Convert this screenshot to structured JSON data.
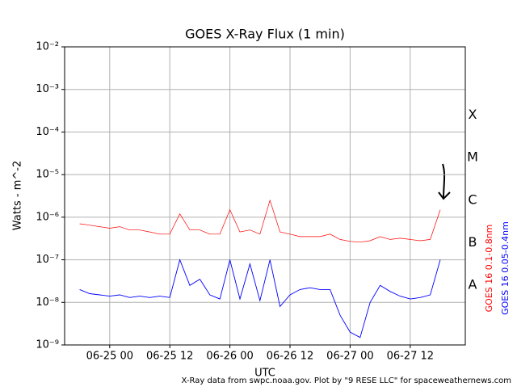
{
  "chart_data": {
    "type": "line",
    "title": "GOES X-Ray Flux (1 min)",
    "x_label": "UTC",
    "y_label": "Watts - m^-2",
    "footer": "X-Ray data from swpc.noaa.gov. Plot by \"9 RESE LLC\" for spaceweathernews.com",
    "flare_classes": [
      "A",
      "B",
      "C",
      "M",
      "X"
    ],
    "log_scale": true,
    "grid": true,
    "x": [
      "06-24 18",
      "06-24 20",
      "06-24 22",
      "06-25 00",
      "06-25 02",
      "06-25 04",
      "06-25 06",
      "06-25 08",
      "06-25 10",
      "06-25 12",
      "06-25 14",
      "06-25 16",
      "06-25 18",
      "06-25 20",
      "06-25 22",
      "06-26 00",
      "06-26 02",
      "06-26 04",
      "06-26 06",
      "06-26 08",
      "06-26 10",
      "06-26 12",
      "06-26 14",
      "06-26 16",
      "06-26 18",
      "06-26 20",
      "06-26 22",
      "06-27 00",
      "06-27 02",
      "06-27 04",
      "06-27 06",
      "06-27 08",
      "06-27 10",
      "06-27 12",
      "06-27 14",
      "06-27 16",
      "06-27 18"
    ],
    "xlim": [
      "06-24 15",
      "06-27 23"
    ],
    "xticks": [
      "06-25 00",
      "06-25 12",
      "06-26 00",
      "06-26 12",
      "06-27 00",
      "06-27 12"
    ],
    "ylim": [
      1e-09,
      0.01
    ],
    "yticks": [
      {
        "value": 1e-09,
        "label": "10⁻⁹"
      },
      {
        "value": 1e-08,
        "label": "10⁻⁸"
      },
      {
        "value": 1e-07,
        "label": "10⁻⁷"
      },
      {
        "value": 1e-06,
        "label": "10⁻⁶"
      },
      {
        "value": 1e-05,
        "label": "10⁻⁵"
      },
      {
        "value": 0.0001,
        "label": "10⁻⁴"
      },
      {
        "value": 0.001,
        "label": "10⁻³"
      },
      {
        "value": 0.01,
        "label": "10⁻²"
      }
    ],
    "series": [
      {
        "name": "GOES 16 0.1-0.8nm",
        "color": "#ff0000",
        "values": [
          7e-07,
          6.5e-07,
          6e-07,
          5.5e-07,
          6e-07,
          5e-07,
          5e-07,
          4.5e-07,
          4e-07,
          4e-07,
          1.2e-06,
          5e-07,
          5e-07,
          4e-07,
          4e-07,
          1.5e-06,
          4.5e-07,
          5e-07,
          4e-07,
          2.5e-06,
          4.5e-07,
          4e-07,
          3.5e-07,
          3.5e-07,
          3.5e-07,
          4e-07,
          3e-07,
          2.7e-07,
          2.6e-07,
          2.8e-07,
          3.5e-07,
          3e-07,
          3.2e-07,
          3e-07,
          2.8e-07,
          3e-07,
          1.5e-06
        ]
      },
      {
        "name": "GOES 16 0.05-0.4nm",
        "color": "#0000ff",
        "values": [
          2e-08,
          1.6e-08,
          1.5e-08,
          1.4e-08,
          1.5e-08,
          1.3e-08,
          1.4e-08,
          1.3e-08,
          1.4e-08,
          1.3e-08,
          1e-07,
          2.5e-08,
          3.5e-08,
          1.5e-08,
          1.2e-08,
          1e-07,
          1.2e-08,
          8e-08,
          1.1e-08,
          1e-07,
          8e-09,
          1.5e-08,
          2e-08,
          2.2e-08,
          2e-08,
          2e-08,
          5e-09,
          2e-09,
          1.5e-09,
          1e-08,
          2.5e-08,
          1.8e-08,
          1.4e-08,
          1.2e-08,
          1.3e-08,
          1.5e-08,
          1e-07
        ]
      }
    ]
  }
}
